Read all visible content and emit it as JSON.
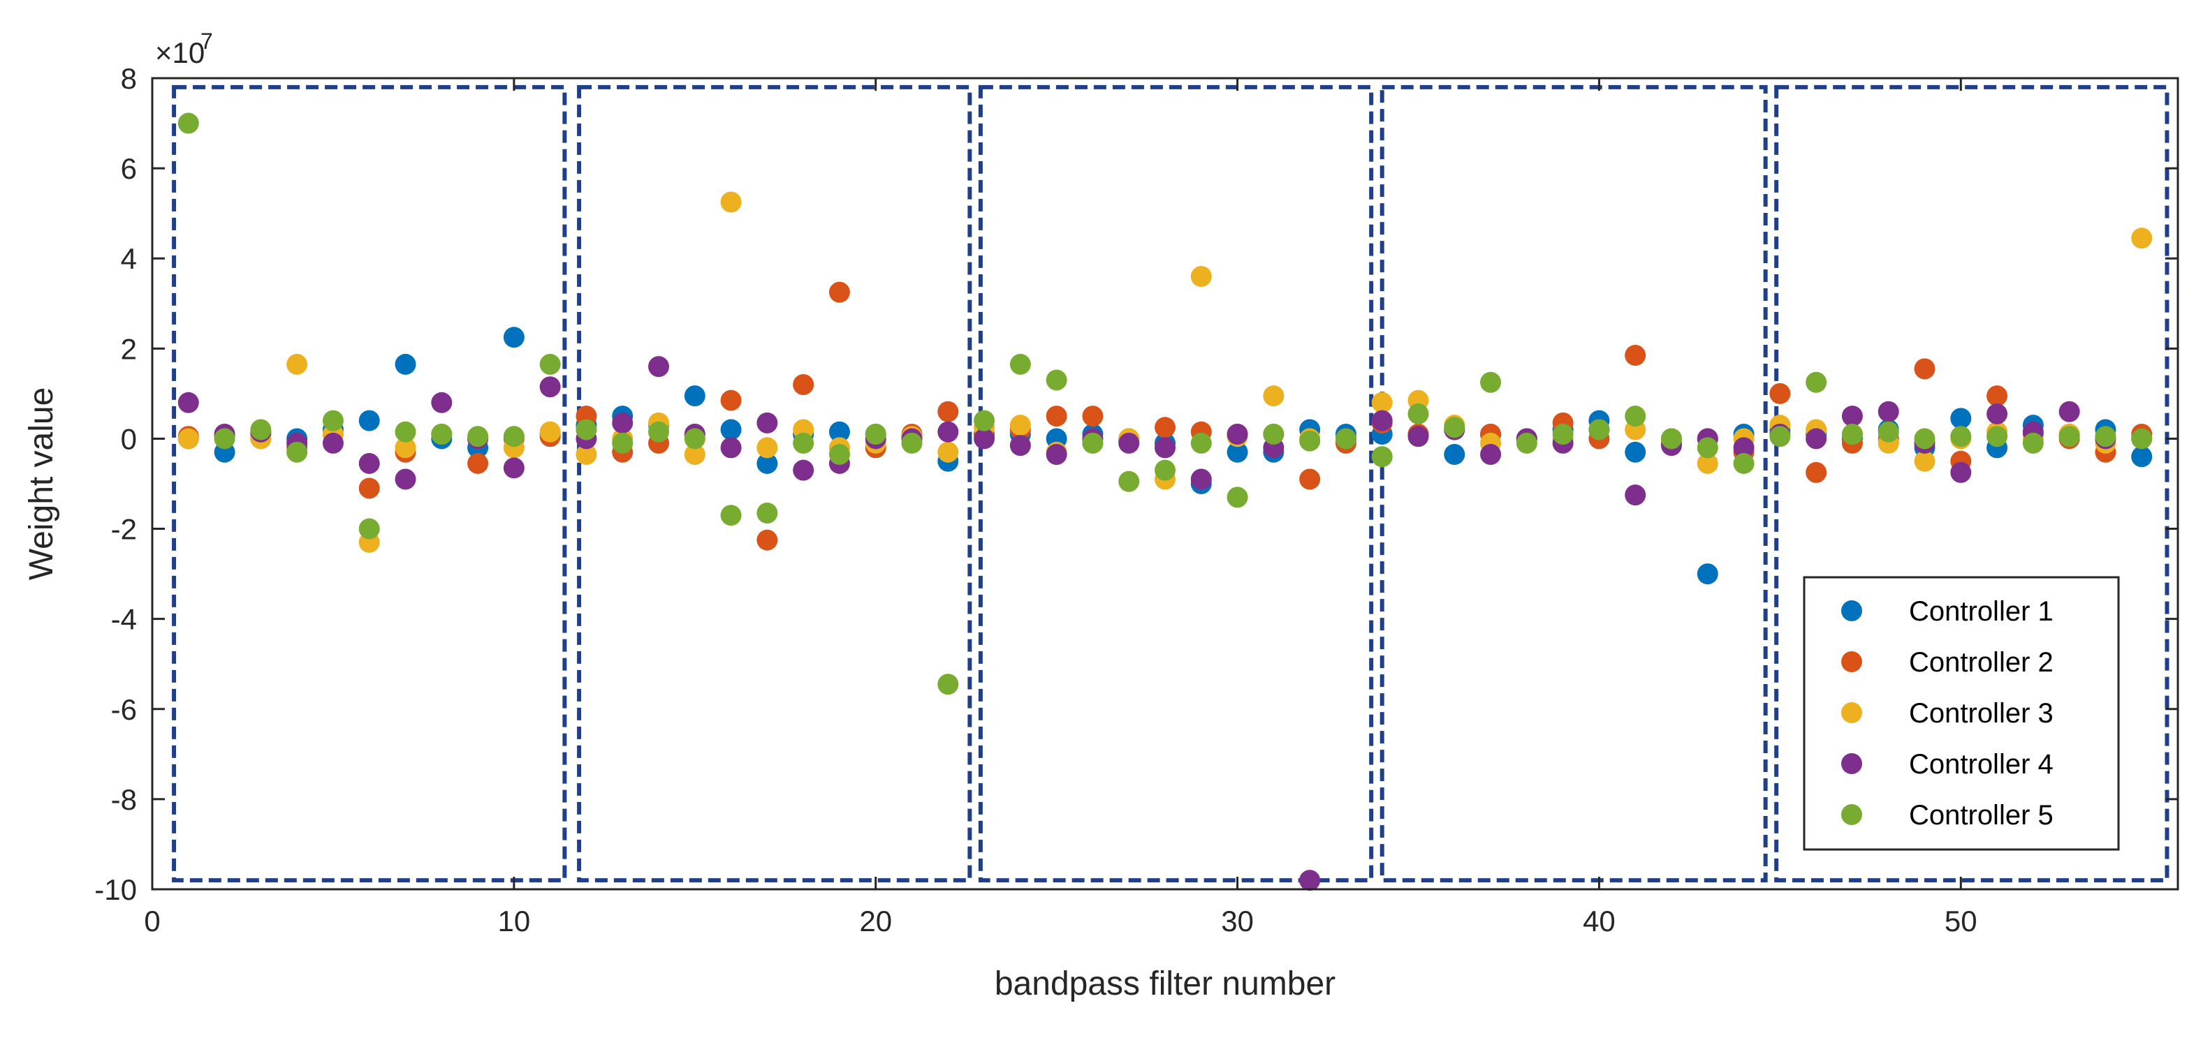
{
  "chart_data": {
    "type": "scatter",
    "xlabel": "bandpass filter number",
    "ylabel": "Weight value",
    "y_exponent_label": "×10",
    "y_exponent_power": "7",
    "xlim": [
      0,
      56
    ],
    "ylim": [
      -10,
      8
    ],
    "x_ticks": [
      0,
      10,
      20,
      30,
      40,
      50
    ],
    "y_ticks": [
      8,
      6,
      4,
      2,
      0,
      -2,
      -4,
      -6,
      -8,
      -10
    ],
    "x_tick_labels": [
      "0",
      "10",
      "20",
      "30",
      "40",
      "50"
    ],
    "y_tick_labels": [
      "8",
      "6",
      "4",
      "2",
      "0",
      "-2",
      "-4",
      "-6",
      "-8",
      "-10"
    ],
    "legend_position": "bottom-right",
    "group_boxes": [
      {
        "x_start": 0.6,
        "x_end": 11.4
      },
      {
        "x_start": 11.8,
        "x_end": 22.6
      },
      {
        "x_start": 22.9,
        "x_end": 33.7
      },
      {
        "x_start": 34.0,
        "x_end": 44.6
      },
      {
        "x_start": 44.9,
        "x_end": 55.7
      }
    ],
    "box_y_range": [
      -9.8,
      7.8
    ],
    "series": [
      {
        "name": "Controller 1",
        "color": "#0072bd",
        "points": [
          [
            1,
            0
          ],
          [
            2,
            -0.3
          ],
          [
            3,
            0
          ],
          [
            4,
            0
          ],
          [
            5,
            0.2
          ],
          [
            6,
            0.4
          ],
          [
            7,
            1.65
          ],
          [
            8,
            0
          ],
          [
            9,
            -0.2
          ],
          [
            10,
            2.25
          ],
          [
            11,
            0.1
          ],
          [
            12,
            0.3
          ],
          [
            13,
            0.5
          ],
          [
            14,
            0.3
          ],
          [
            15,
            0.95
          ],
          [
            16,
            0.2
          ],
          [
            17,
            -0.55
          ],
          [
            18,
            0.1
          ],
          [
            19,
            0.15
          ],
          [
            20,
            0.1
          ],
          [
            21,
            0
          ],
          [
            22,
            -0.5
          ],
          [
            23,
            0.1
          ],
          [
            24,
            0.1
          ],
          [
            25,
            0
          ],
          [
            26,
            0.1
          ],
          [
            27,
            0
          ],
          [
            28,
            -0.1
          ],
          [
            29,
            -1.0
          ],
          [
            30,
            -0.3
          ],
          [
            31,
            -0.3
          ],
          [
            32,
            0.2
          ],
          [
            33,
            0.1
          ],
          [
            34,
            0.1
          ],
          [
            35,
            0.1
          ],
          [
            36,
            -0.35
          ],
          [
            37,
            0.1
          ],
          [
            38,
            0
          ],
          [
            39,
            0.2
          ],
          [
            40,
            0.4
          ],
          [
            41,
            -0.3
          ],
          [
            42,
            0
          ],
          [
            43,
            -3.0
          ],
          [
            44,
            0.1
          ],
          [
            45,
            0.2
          ],
          [
            46,
            0.1
          ],
          [
            47,
            0
          ],
          [
            48,
            0.2
          ],
          [
            49,
            -0.2
          ],
          [
            50,
            0.45
          ],
          [
            51,
            -0.2
          ],
          [
            52,
            0.3
          ],
          [
            53,
            0.1
          ],
          [
            54,
            0.2
          ],
          [
            55,
            -0.4
          ]
        ]
      },
      {
        "name": "Controller 2",
        "color": "#d95319",
        "points": [
          [
            1,
            0.05
          ],
          [
            2,
            0.05
          ],
          [
            3,
            0.1
          ],
          [
            4,
            -0.2
          ],
          [
            5,
            0.1
          ],
          [
            6,
            -1.1
          ],
          [
            7,
            -0.3
          ],
          [
            8,
            0.1
          ],
          [
            9,
            -0.55
          ],
          [
            10,
            0
          ],
          [
            11,
            0.05
          ],
          [
            12,
            0.5
          ],
          [
            13,
            -0.3
          ],
          [
            14,
            -0.1
          ],
          [
            15,
            0.1
          ],
          [
            16,
            0.85
          ],
          [
            17,
            -2.25
          ],
          [
            18,
            1.2
          ],
          [
            19,
            3.25
          ],
          [
            20,
            -0.2
          ],
          [
            21,
            0.1
          ],
          [
            22,
            0.6
          ],
          [
            23,
            0.1
          ],
          [
            24,
            0.2
          ],
          [
            25,
            0.5
          ],
          [
            26,
            0.5
          ],
          [
            27,
            -0.05
          ],
          [
            28,
            0.25
          ],
          [
            29,
            0.15
          ],
          [
            30,
            0.1
          ],
          [
            31,
            0.1
          ],
          [
            32,
            -0.9
          ],
          [
            33,
            -0.1
          ],
          [
            34,
            0.35
          ],
          [
            35,
            0.1
          ],
          [
            36,
            0.2
          ],
          [
            37,
            0.1
          ],
          [
            38,
            0
          ],
          [
            39,
            0.35
          ],
          [
            40,
            0
          ],
          [
            41,
            1.85
          ],
          [
            42,
            -0.1
          ],
          [
            43,
            0
          ],
          [
            44,
            -0.3
          ],
          [
            45,
            1.0
          ],
          [
            46,
            -0.75
          ],
          [
            47,
            -0.1
          ],
          [
            48,
            0
          ],
          [
            49,
            1.55
          ],
          [
            50,
            -0.5
          ],
          [
            51,
            0.95
          ],
          [
            52,
            0.1
          ],
          [
            53,
            0
          ],
          [
            54,
            -0.3
          ],
          [
            55,
            0.1
          ]
        ]
      },
      {
        "name": "Controller 3",
        "color": "#edb120",
        "points": [
          [
            1,
            0
          ],
          [
            2,
            0.1
          ],
          [
            3,
            0
          ],
          [
            4,
            1.65
          ],
          [
            5,
            0.1
          ],
          [
            6,
            -2.3
          ],
          [
            7,
            -0.2
          ],
          [
            8,
            0.1
          ],
          [
            9,
            0
          ],
          [
            10,
            -0.2
          ],
          [
            11,
            0.15
          ],
          [
            12,
            -0.35
          ],
          [
            13,
            0
          ],
          [
            14,
            0.35
          ],
          [
            15,
            -0.35
          ],
          [
            16,
            5.25
          ],
          [
            17,
            -0.2
          ],
          [
            18,
            0.2
          ],
          [
            19,
            -0.2
          ],
          [
            20,
            -0.1
          ],
          [
            21,
            0.05
          ],
          [
            22,
            -0.3
          ],
          [
            23,
            0.25
          ],
          [
            24,
            0.3
          ],
          [
            25,
            -0.3
          ],
          [
            26,
            -0.1
          ],
          [
            27,
            0
          ],
          [
            28,
            -0.9
          ],
          [
            29,
            3.6
          ],
          [
            30,
            0.05
          ],
          [
            31,
            0.95
          ],
          [
            32,
            0
          ],
          [
            33,
            0
          ],
          [
            34,
            0.8
          ],
          [
            35,
            0.85
          ],
          [
            36,
            0.3
          ],
          [
            37,
            -0.1
          ],
          [
            38,
            0
          ],
          [
            39,
            0
          ],
          [
            40,
            0.2
          ],
          [
            41,
            0.2
          ],
          [
            42,
            0
          ],
          [
            43,
            -0.55
          ],
          [
            44,
            0
          ],
          [
            45,
            0.3
          ],
          [
            46,
            0.2
          ],
          [
            47,
            0.1
          ],
          [
            48,
            -0.1
          ],
          [
            49,
            -0.5
          ],
          [
            50,
            0
          ],
          [
            51,
            0.15
          ],
          [
            52,
            0
          ],
          [
            53,
            0.1
          ],
          [
            54,
            -0.1
          ],
          [
            55,
            4.45
          ]
        ]
      },
      {
        "name": "Controller 4",
        "color": "#7e2f8e",
        "points": [
          [
            1,
            0.8
          ],
          [
            2,
            0.1
          ],
          [
            3,
            0.15
          ],
          [
            4,
            -0.1
          ],
          [
            5,
            -0.1
          ],
          [
            6,
            -0.55
          ],
          [
            7,
            -0.9
          ],
          [
            8,
            0.8
          ],
          [
            9,
            0
          ],
          [
            10,
            -0.65
          ],
          [
            11,
            1.15
          ],
          [
            12,
            0
          ],
          [
            13,
            0.35
          ],
          [
            14,
            1.6
          ],
          [
            15,
            0.1
          ],
          [
            16,
            -0.2
          ],
          [
            17,
            0.35
          ],
          [
            18,
            -0.7
          ],
          [
            19,
            -0.55
          ],
          [
            20,
            0
          ],
          [
            21,
            0
          ],
          [
            22,
            0.15
          ],
          [
            23,
            0
          ],
          [
            24,
            -0.15
          ],
          [
            25,
            -0.35
          ],
          [
            26,
            0
          ],
          [
            27,
            -0.1
          ],
          [
            28,
            -0.2
          ],
          [
            29,
            -0.9
          ],
          [
            30,
            0.1
          ],
          [
            31,
            -0.2
          ],
          [
            32,
            -9.8
          ],
          [
            33,
            0
          ],
          [
            34,
            0.4
          ],
          [
            35,
            0.05
          ],
          [
            36,
            0.2
          ],
          [
            37,
            -0.35
          ],
          [
            38,
            0
          ],
          [
            39,
            -0.1
          ],
          [
            40,
            0.2
          ],
          [
            41,
            -1.25
          ],
          [
            42,
            -0.15
          ],
          [
            43,
            0
          ],
          [
            44,
            -0.2
          ],
          [
            45,
            0.1
          ],
          [
            46,
            0
          ],
          [
            47,
            0.5
          ],
          [
            48,
            0.6
          ],
          [
            49,
            -0.1
          ],
          [
            50,
            -0.75
          ],
          [
            51,
            0.55
          ],
          [
            52,
            0.15
          ],
          [
            53,
            0.6
          ],
          [
            54,
            0
          ],
          [
            55,
            0
          ]
        ]
      },
      {
        "name": "Controller 5",
        "color": "#77ac30",
        "points": [
          [
            1,
            7.0
          ],
          [
            2,
            0
          ],
          [
            3,
            0.2
          ],
          [
            4,
            -0.3
          ],
          [
            5,
            0.4
          ],
          [
            6,
            -2.0
          ],
          [
            7,
            0.15
          ],
          [
            8,
            0.1
          ],
          [
            9,
            0.05
          ],
          [
            10,
            0.05
          ],
          [
            11,
            1.65
          ],
          [
            12,
            0.2
          ],
          [
            13,
            -0.1
          ],
          [
            14,
            0.15
          ],
          [
            15,
            0
          ],
          [
            16,
            -1.7
          ],
          [
            17,
            -1.65
          ],
          [
            18,
            -0.1
          ],
          [
            19,
            -0.35
          ],
          [
            20,
            0.1
          ],
          [
            21,
            -0.1
          ],
          [
            22,
            -5.45
          ],
          [
            23,
            0.4
          ],
          [
            24,
            1.65
          ],
          [
            25,
            1.3
          ],
          [
            26,
            -0.1
          ],
          [
            27,
            -0.95
          ],
          [
            28,
            -0.7
          ],
          [
            29,
            -0.1
          ],
          [
            30,
            -1.3
          ],
          [
            31,
            0.1
          ],
          [
            32,
            -0.05
          ],
          [
            33,
            0
          ],
          [
            34,
            -0.4
          ],
          [
            35,
            0.55
          ],
          [
            36,
            0.25
          ],
          [
            37,
            1.25
          ],
          [
            38,
            -0.1
          ],
          [
            39,
            0.1
          ],
          [
            40,
            0.2
          ],
          [
            41,
            0.5
          ],
          [
            42,
            0
          ],
          [
            43,
            -0.2
          ],
          [
            44,
            -0.55
          ],
          [
            45,
            0.05
          ],
          [
            46,
            1.25
          ],
          [
            47,
            0.1
          ],
          [
            48,
            0.15
          ],
          [
            49,
            0
          ],
          [
            50,
            0.05
          ],
          [
            51,
            0.05
          ],
          [
            52,
            -0.1
          ],
          [
            53,
            0.05
          ],
          [
            54,
            0.05
          ],
          [
            55,
            0
          ]
        ]
      }
    ]
  }
}
